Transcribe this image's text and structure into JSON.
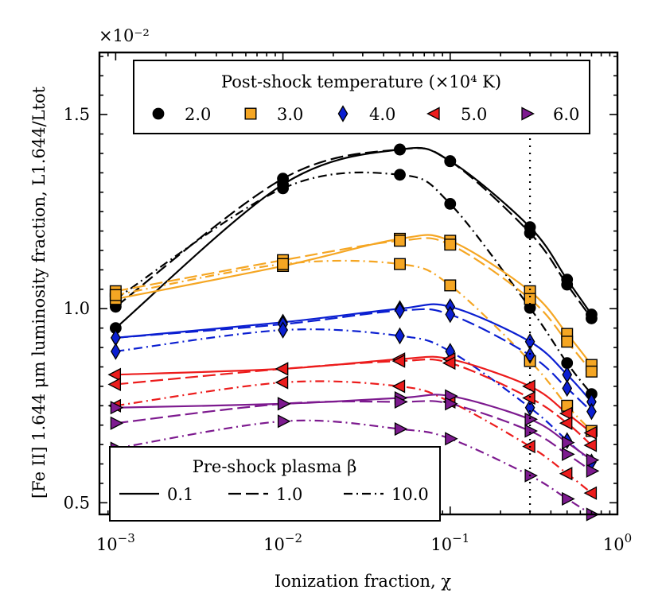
{
  "chart_data": {
    "type": "scatter",
    "xscale": "log",
    "xlim": [
      0.0008,
      1.0
    ],
    "ylim": [
      0.0047,
      0.0166
    ],
    "multiplier_label": "×10⁻²",
    "xlabel": "Ionization fraction, χ",
    "ylabel": "[Fe II] 1.644 μm luminosity fraction, L1.644/Ltot",
    "x_ticks": [
      {
        "value": 0.001,
        "base": "10",
        "exp": "−3"
      },
      {
        "value": 0.01,
        "base": "10",
        "exp": "−2"
      },
      {
        "value": 0.1,
        "base": "10",
        "exp": "−1"
      },
      {
        "value": 1.0,
        "base": "10",
        "exp": "0"
      }
    ],
    "y_ticks": [
      {
        "value": 0.005,
        "label": "0.5"
      },
      {
        "value": 0.01,
        "label": "1.0"
      },
      {
        "value": 0.015,
        "label": "1.5"
      }
    ],
    "reference_line_x": 0.3,
    "x": [
      0.001,
      0.01,
      0.05,
      0.1,
      0.3,
      0.5,
      0.7
    ],
    "temperatures": [
      {
        "label": "2.0",
        "color": "#000000",
        "marker": "circle",
        "curves": {
          "0.1": [
            0.0095,
            0.0132,
            0.0141,
            0.0138,
            0.0121,
            0.01075,
            0.00985
          ],
          "1.0": [
            0.01005,
            0.01335,
            0.0141,
            0.0138,
            0.01195,
            0.01062,
            0.00975
          ],
          "10.0": [
            0.01025,
            0.0131,
            0.01345,
            0.0127,
            0.01002,
            0.0086,
            0.0078
          ]
        }
      },
      {
        "label": "3.0",
        "color": "#f5a623",
        "marker": "square",
        "curves": {
          "0.1": [
            0.01025,
            0.0111,
            0.0118,
            0.01175,
            0.01045,
            0.00935,
            0.00855
          ],
          "1.0": [
            0.01045,
            0.01125,
            0.01175,
            0.01165,
            0.01025,
            0.00915,
            0.00838
          ],
          "10.0": [
            0.01035,
            0.01115,
            0.01115,
            0.0106,
            0.00865,
            0.0075,
            0.00685
          ]
        }
      },
      {
        "label": "4.0",
        "color": "#0b1fd1",
        "marker": "diamond",
        "curves": {
          "0.1": [
            0.00925,
            0.00965,
            0.01,
            0.01005,
            0.00915,
            0.0083,
            0.0076
          ],
          "1.0": [
            0.00925,
            0.0096,
            0.00995,
            0.00985,
            0.0088,
            0.00795,
            0.00735
          ],
          "10.0": [
            0.0089,
            0.00945,
            0.0093,
            0.0089,
            0.00745,
            0.0066,
            0.00605
          ]
        }
      },
      {
        "label": "5.0",
        "color": "#ec1c1c",
        "marker": "triangle-left",
        "curves": {
          "0.1": [
            0.0083,
            0.00845,
            0.0087,
            0.0087,
            0.008,
            0.0073,
            0.0068
          ],
          "1.0": [
            0.00805,
            0.00845,
            0.00865,
            0.0086,
            0.0077,
            0.00705,
            0.00648
          ],
          "10.0": [
            0.0075,
            0.0081,
            0.008,
            0.0076,
            0.00645,
            0.00575,
            0.00525
          ]
        }
      },
      {
        "label": "6.0",
        "color": "#7d1a8f",
        "marker": "triangle-right",
        "curves": {
          "0.1": [
            0.00745,
            0.00755,
            0.0077,
            0.00775,
            0.00715,
            0.00655,
            0.0061
          ],
          "1.0": [
            0.00705,
            0.00755,
            0.0076,
            0.00755,
            0.00685,
            0.00625,
            0.00582
          ],
          "10.0": [
            0.0064,
            0.0071,
            0.0069,
            0.00665,
            0.0057,
            0.0051,
            0.0047
          ]
        }
      }
    ],
    "beta_values": [
      {
        "label": "0.1",
        "dash": "solid"
      },
      {
        "label": "1.0",
        "dash": "dashed"
      },
      {
        "label": "10.0",
        "dash": "dashdot"
      }
    ],
    "legend_temperature": {
      "title": "Post-shock temperature (×10⁴ K)",
      "placement": "top-center"
    },
    "legend_beta": {
      "title": "Pre-shock plasma β",
      "placement": "bottom-left"
    }
  }
}
